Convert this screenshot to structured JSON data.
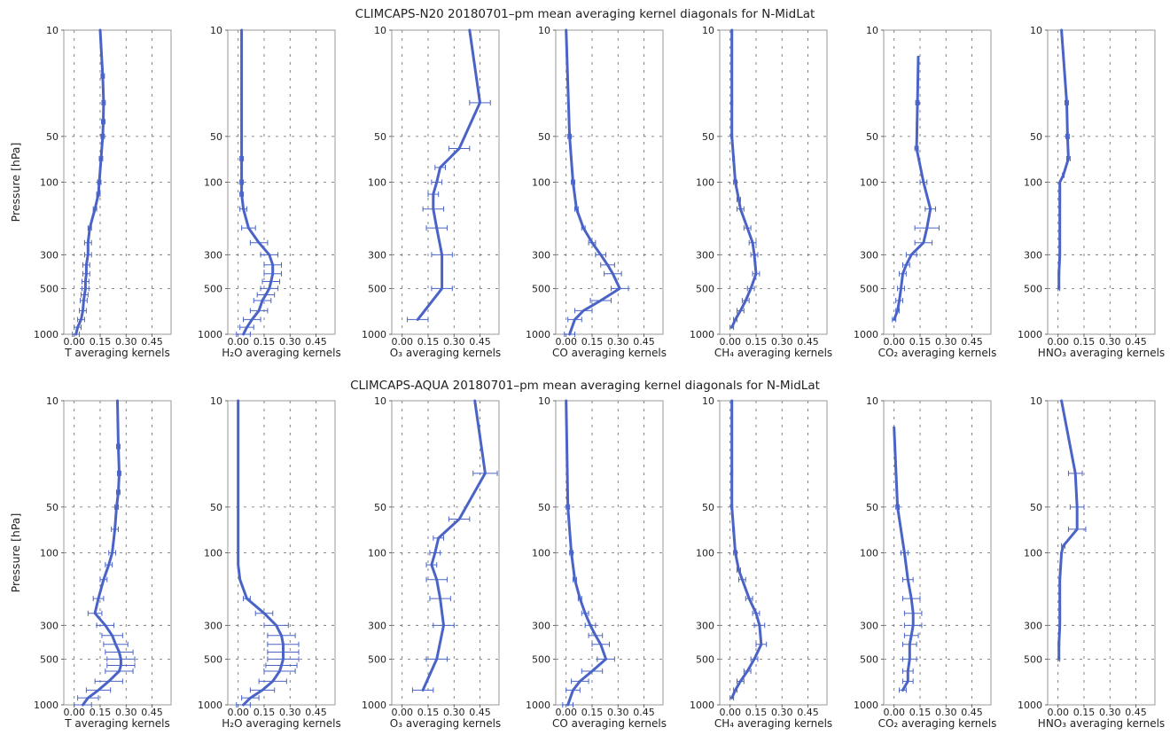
{
  "figure": {
    "ylabel": "Pressure [hPa]",
    "ytick_labels": [
      "10",
      "50",
      "100",
      "300",
      "500",
      "1000"
    ],
    "xtick_labels": [
      "0.00",
      "0.15",
      "0.30",
      "0.45"
    ]
  },
  "colors": {
    "line": "#4a63c6",
    "frame": "#9a9a9a",
    "grid": "#666666"
  },
  "chart_data": [
    {
      "type": "line",
      "title": "CLIMCAPS-N20 20180701–pm mean averaging kernel diagonals for N-MidLat",
      "ylim": [
        1000,
        10
      ],
      "yscale": "log",
      "xlim": [
        -0.06,
        0.56
      ],
      "yticks": [
        10,
        50,
        100,
        300,
        500,
        1000
      ],
      "xticks": [
        0,
        0.15,
        0.3,
        0.45
      ],
      "panels": [
        {
          "xlabel": "T averaging kernels",
          "p": [
            10,
            20,
            30,
            40,
            50,
            70,
            100,
            120,
            150,
            200,
            250,
            300,
            350,
            400,
            450,
            500,
            550,
            600,
            700,
            800,
            900,
            1000
          ],
          "x": [
            0.15,
            0.165,
            0.17,
            0.168,
            0.165,
            0.155,
            0.145,
            0.14,
            0.12,
            0.09,
            0.08,
            0.08,
            0.07,
            0.07,
            0.065,
            0.065,
            0.06,
            0.055,
            0.05,
            0.04,
            0.02,
            0.01
          ],
          "err": [
            0,
            0.01,
            0.01,
            0.01,
            0.01,
            0.01,
            0.01,
            0.01,
            0.01,
            0.01,
            0.02,
            0.02,
            0.02,
            0.02,
            0.02,
            0.02,
            0.02,
            0.02,
            0.02,
            0.02,
            0.02,
            0.02
          ]
        },
        {
          "xlabel": "H₂O averaging kernels",
          "p": [
            10,
            20,
            30,
            40,
            50,
            70,
            100,
            120,
            150,
            200,
            250,
            300,
            350,
            400,
            450,
            500,
            550,
            600,
            700,
            800,
            900,
            1000
          ],
          "x": [
            0.02,
            0.02,
            0.02,
            0.02,
            0.02,
            0.02,
            0.02,
            0.02,
            0.03,
            0.06,
            0.12,
            0.18,
            0.2,
            0.2,
            0.19,
            0.18,
            0.16,
            0.14,
            0.12,
            0.08,
            0.05,
            0.03
          ],
          "err": [
            0,
            0,
            0,
            0,
            0,
            0.01,
            0.01,
            0.01,
            0.02,
            0.04,
            0.05,
            0.05,
            0.05,
            0.05,
            0.05,
            0.05,
            0.05,
            0.05,
            0.05,
            0.05,
            0.04,
            0.04
          ]
        },
        {
          "xlabel": "O₃ averaging kernels",
          "p": [
            10,
            30,
            60,
            80,
            100,
            120,
            150,
            200,
            300,
            500,
            800
          ],
          "x": [
            0.39,
            0.45,
            0.33,
            0.22,
            0.2,
            0.18,
            0.18,
            0.2,
            0.23,
            0.23,
            0.09
          ],
          "err": [
            0,
            0.06,
            0.06,
            0.03,
            0.03,
            0.03,
            0.06,
            0.06,
            0.06,
            0.06,
            0.06
          ]
        },
        {
          "xlabel": "CO averaging kernels",
          "p": [
            10,
            50,
            100,
            150,
            200,
            250,
            300,
            350,
            400,
            500,
            600,
            700,
            800,
            1000
          ],
          "x": [
            0.0,
            0.02,
            0.04,
            0.06,
            0.1,
            0.15,
            0.2,
            0.24,
            0.27,
            0.31,
            0.2,
            0.1,
            0.05,
            0.02
          ],
          "err": [
            0,
            0.01,
            0.01,
            0.01,
            0.01,
            0.02,
            0.03,
            0.04,
            0.05,
            0.05,
            0.06,
            0.05,
            0.04,
            0.03
          ]
        },
        {
          "xlabel": "CH₄ averaging kernels",
          "p": [
            10,
            30,
            50,
            70,
            100,
            130,
            150,
            200,
            250,
            300,
            400,
            500,
            600,
            700,
            800,
            900
          ],
          "x": [
            0.01,
            0.01,
            0.01,
            0.02,
            0.03,
            0.05,
            0.06,
            0.1,
            0.13,
            0.14,
            0.15,
            0.12,
            0.09,
            0.06,
            0.03,
            0.01
          ],
          "err": [
            0,
            0.005,
            0.005,
            0.005,
            0.01,
            0.01,
            0.02,
            0.02,
            0.02,
            0.02,
            0.02,
            0.02,
            0.02,
            0.02,
            0.01,
            0.01
          ]
        },
        {
          "xlabel": "CO₂ averaging kernels",
          "p": [
            15,
            30,
            60,
            100,
            150,
            200,
            250,
            300,
            350,
            400,
            500,
            600,
            700,
            800
          ],
          "x": [
            0.14,
            0.135,
            0.13,
            0.17,
            0.21,
            0.19,
            0.17,
            0.1,
            0.07,
            0.05,
            0.04,
            0.03,
            0.02,
            0.0
          ],
          "err": [
            0,
            0.01,
            0.01,
            0.02,
            0.03,
            0.07,
            0.05,
            0.03,
            0.02,
            0.02,
            0.02,
            0.02,
            0.01,
            0.01
          ]
        },
        {
          "xlabel": "HNO₃ averaging kernels",
          "p": [
            10,
            30,
            50,
            70,
            90,
            100,
            150,
            200,
            300,
            400,
            500
          ],
          "x": [
            0.02,
            0.05,
            0.055,
            0.06,
            0.03,
            0.01,
            0.01,
            0.01,
            0.01,
            0.005,
            0.005
          ],
          "err": [
            0,
            0.01,
            0.01,
            0.01,
            0.005,
            0,
            0,
            0,
            0,
            0.005,
            0.005
          ]
        }
      ]
    },
    {
      "type": "line",
      "title": "CLIMCAPS-AQUA 20180701–pm mean averaging kernel diagonals for N-MidLat",
      "ylim": [
        1000,
        10
      ],
      "yscale": "log",
      "xlim": [
        -0.06,
        0.56
      ],
      "yticks": [
        10,
        50,
        100,
        300,
        500,
        1000
      ],
      "xticks": [
        0,
        0.15,
        0.3,
        0.45
      ],
      "panels": [
        {
          "xlabel": "T averaging kernels",
          "p": [
            10,
            20,
            30,
            40,
            50,
            70,
            100,
            120,
            150,
            200,
            250,
            300,
            350,
            400,
            450,
            500,
            550,
            600,
            700,
            800,
            900,
            1000
          ],
          "x": [
            0.25,
            0.255,
            0.26,
            0.255,
            0.245,
            0.235,
            0.22,
            0.2,
            0.17,
            0.14,
            0.12,
            0.18,
            0.22,
            0.24,
            0.26,
            0.27,
            0.27,
            0.26,
            0.2,
            0.14,
            0.08,
            0.05
          ],
          "err": [
            0,
            0.01,
            0.01,
            0.01,
            0.01,
            0.02,
            0.02,
            0.02,
            0.02,
            0.03,
            0.04,
            0.05,
            0.06,
            0.07,
            0.08,
            0.08,
            0.08,
            0.08,
            0.08,
            0.07,
            0.06,
            0.05
          ]
        },
        {
          "xlabel": "H₂O averaging kernels",
          "p": [
            10,
            20,
            30,
            40,
            50,
            70,
            100,
            120,
            150,
            200,
            250,
            300,
            350,
            400,
            450,
            500,
            550,
            600,
            700,
            800,
            900,
            1000
          ],
          "x": [
            0.0,
            0.0,
            0.0,
            0.0,
            0.0,
            0.0,
            0.0,
            0.0,
            0.01,
            0.05,
            0.15,
            0.22,
            0.25,
            0.26,
            0.26,
            0.26,
            0.25,
            0.24,
            0.2,
            0.14,
            0.07,
            0.03
          ],
          "err": [
            0,
            0,
            0,
            0,
            0,
            0,
            0,
            0,
            0,
            0.02,
            0.05,
            0.07,
            0.08,
            0.09,
            0.09,
            0.09,
            0.09,
            0.09,
            0.08,
            0.07,
            0.05,
            0.04
          ]
        },
        {
          "xlabel": "O₃ averaging kernels",
          "p": [
            10,
            30,
            60,
            80,
            100,
            120,
            150,
            200,
            300,
            500,
            800
          ],
          "x": [
            0.42,
            0.48,
            0.33,
            0.21,
            0.19,
            0.17,
            0.2,
            0.22,
            0.24,
            0.2,
            0.12
          ],
          "err": [
            0,
            0.07,
            0.06,
            0.03,
            0.03,
            0.03,
            0.06,
            0.06,
            0.06,
            0.06,
            0.06
          ]
        },
        {
          "xlabel": "CO averaging kernels",
          "p": [
            10,
            50,
            100,
            150,
            200,
            250,
            300,
            350,
            400,
            500,
            600,
            700,
            800,
            1000
          ],
          "x": [
            0.0,
            0.01,
            0.03,
            0.05,
            0.08,
            0.11,
            0.14,
            0.17,
            0.2,
            0.23,
            0.15,
            0.08,
            0.04,
            0.01
          ],
          "err": [
            0,
            0.01,
            0.01,
            0.01,
            0.01,
            0.02,
            0.03,
            0.04,
            0.05,
            0.05,
            0.06,
            0.05,
            0.04,
            0.03
          ]
        },
        {
          "xlabel": "CH₄ averaging kernels",
          "p": [
            10,
            30,
            50,
            70,
            100,
            130,
            150,
            200,
            250,
            300,
            400,
            500,
            600,
            700,
            800,
            900
          ],
          "x": [
            0.01,
            0.01,
            0.01,
            0.02,
            0.03,
            0.05,
            0.07,
            0.11,
            0.15,
            0.17,
            0.18,
            0.14,
            0.1,
            0.06,
            0.03,
            0.01
          ],
          "err": [
            0,
            0.005,
            0.005,
            0.005,
            0.01,
            0.01,
            0.02,
            0.02,
            0.02,
            0.03,
            0.03,
            0.02,
            0.02,
            0.02,
            0.01,
            0.01
          ]
        },
        {
          "xlabel": "CO₂ averaging kernels",
          "p": [
            15,
            50,
            100,
            150,
            200,
            250,
            300,
            350,
            400,
            500,
            600,
            700,
            800
          ],
          "x": [
            0.0,
            0.02,
            0.06,
            0.08,
            0.1,
            0.11,
            0.11,
            0.1,
            0.09,
            0.09,
            0.08,
            0.08,
            0.05
          ],
          "err": [
            0,
            0.01,
            0.02,
            0.03,
            0.05,
            0.05,
            0.05,
            0.04,
            0.04,
            0.04,
            0.03,
            0.03,
            0.02
          ]
        },
        {
          "xlabel": "HNO₃ averaging kernels",
          "p": [
            10,
            30,
            50,
            70,
            90,
            100,
            150,
            200,
            300,
            400,
            500
          ],
          "x": [
            0.02,
            0.1,
            0.11,
            0.11,
            0.03,
            0.02,
            0.01,
            0.01,
            0.01,
            0.005,
            0.005
          ],
          "err": [
            0,
            0.04,
            0.04,
            0.05,
            0.01,
            0,
            0,
            0,
            0,
            0.005,
            0.005
          ]
        }
      ]
    }
  ]
}
